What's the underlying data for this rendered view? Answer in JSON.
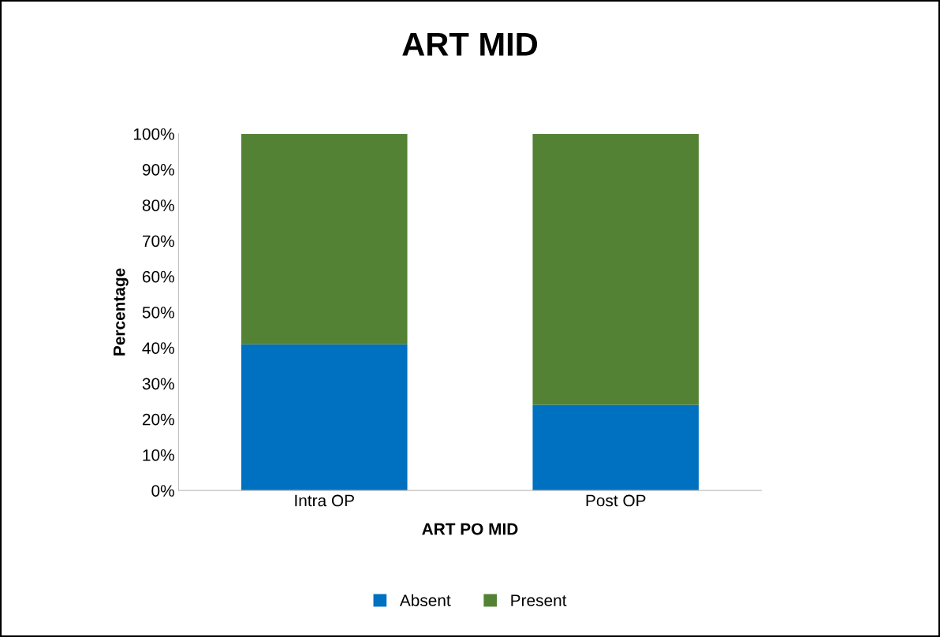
{
  "chart_data": {
    "type": "bar",
    "title": "ART MID",
    "xlabel": "ART PO MID",
    "ylabel": "Percentage",
    "categories": [
      "Intra OP",
      "Post OP"
    ],
    "stacked": true,
    "series": [
      {
        "name": "Absent",
        "color": "#0070c0",
        "values": [
          41,
          24
        ]
      },
      {
        "name": "Present",
        "color": "#548235",
        "values": [
          59,
          76
        ]
      }
    ],
    "ylim": [
      0,
      100
    ],
    "yticks": [
      {
        "value": 0,
        "label": "0%"
      },
      {
        "value": 10,
        "label": "10%"
      },
      {
        "value": 20,
        "label": "20%"
      },
      {
        "value": 30,
        "label": "30%"
      },
      {
        "value": 40,
        "label": "40%"
      },
      {
        "value": 50,
        "label": "50%"
      },
      {
        "value": 60,
        "label": "60%"
      },
      {
        "value": 70,
        "label": "70%"
      },
      {
        "value": 80,
        "label": "80%"
      },
      {
        "value": 90,
        "label": "90%"
      },
      {
        "value": 100,
        "label": "100%"
      }
    ],
    "grid": false,
    "legend": "bottom"
  }
}
